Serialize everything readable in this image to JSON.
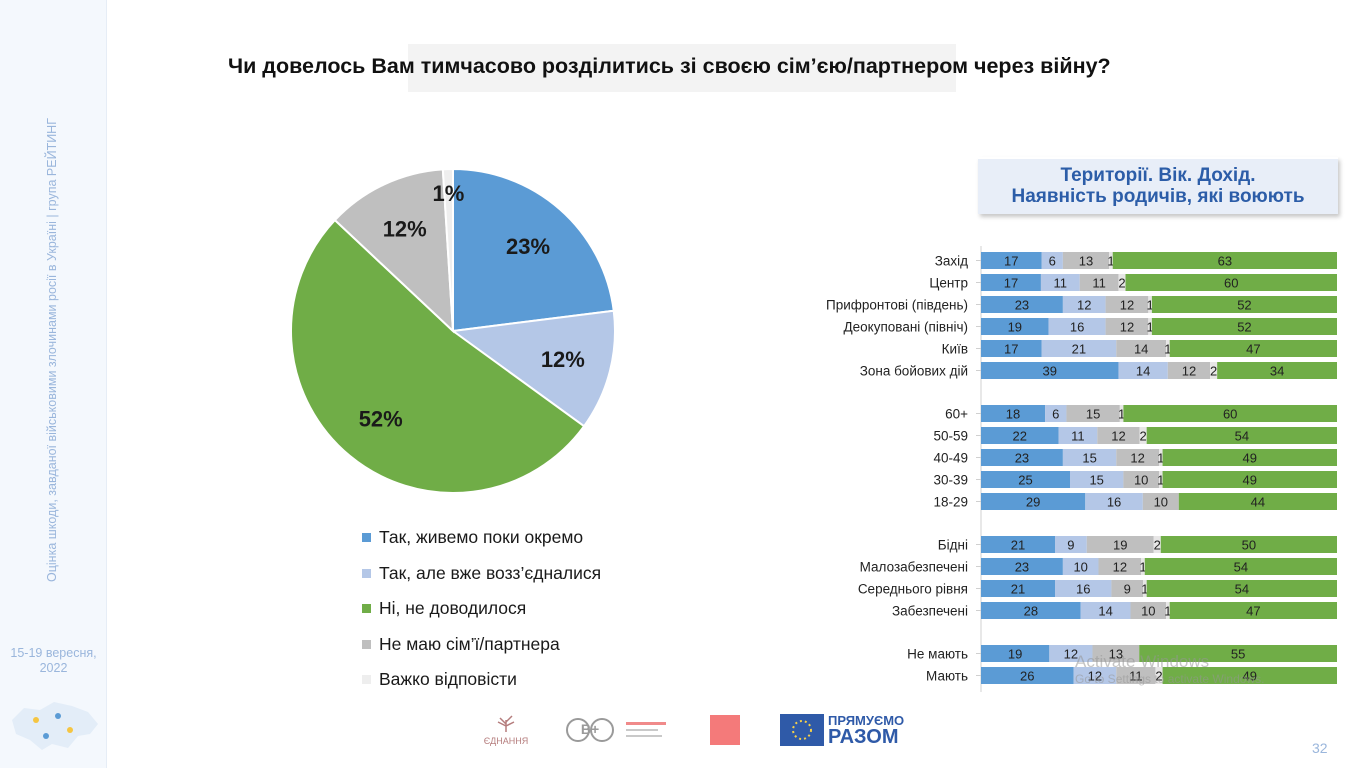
{
  "sidebar": {
    "vertical_text": "Оцінка шкоди, завданої військовими злочинами росії в Україні | група РЕЙТИНГ",
    "date_line1": "15-19 вересня,",
    "date_line2": "2022"
  },
  "title": "Чи довелось Вам тимчасово розділитись зі своєю сім’єю/партнером через війну?",
  "panel": {
    "line1": "Території. Вік. Дохід.",
    "line2": "Наявність родичів, які воюють"
  },
  "colors": {
    "blue": "#5b9bd5",
    "light_blue": "#b4c7e7",
    "green": "#70ad47",
    "gray": "#bfbfbf",
    "very_light": "#eeeeee",
    "panel_title": "#2c5da8"
  },
  "chart_data": [
    {
      "type": "pie",
      "categories": [
        "Так, живемо поки окремо",
        "Так, але вже возз’єдналися",
        "Ні, не доводилося",
        "Не маю сім’ї/партнера",
        "Важко відповісти"
      ],
      "values": [
        23,
        12,
        52,
        12,
        1
      ],
      "labels": [
        "23%",
        "12%",
        "52%",
        "12%",
        "1%"
      ],
      "colors": [
        "#5b9bd5",
        "#b4c7e7",
        "#70ad47",
        "#bfbfbf",
        "#eeeeee"
      ],
      "legend": "bottom"
    },
    {
      "type": "bar",
      "stacked": true,
      "orientation": "horizontal",
      "categories": [
        "Захід",
        "Центр",
        "Прифронтові (південь)",
        "Деокуповані (північ)",
        "Київ",
        "Зона бойових дій",
        "60+",
        "50-59",
        "40-49",
        "30-39",
        "18-29",
        "Бідні",
        "Малозабезпечені",
        "Середнього рівня",
        "Забезпечені",
        "Не мають",
        "Мають"
      ],
      "groups": [
        6,
        5,
        4,
        2
      ],
      "series": [
        {
          "values": [
            17,
            17,
            23,
            19,
            17,
            39,
            18,
            22,
            23,
            25,
            29,
            21,
            23,
            21,
            28,
            19,
            26
          ]
        },
        {
          "values": [
            6,
            11,
            12,
            16,
            21,
            14,
            6,
            11,
            15,
            15,
            16,
            9,
            10,
            16,
            14,
            12,
            12
          ]
        },
        {
          "values": [
            13,
            11,
            12,
            12,
            14,
            12,
            15,
            12,
            12,
            10,
            10,
            19,
            12,
            9,
            10,
            13,
            11
          ]
        },
        {
          "values": [
            1,
            2,
            1,
            1,
            1,
            2,
            1,
            2,
            1,
            1,
            0,
            2,
            1,
            1,
            1,
            0,
            2
          ]
        },
        {
          "values": [
            63,
            60,
            52,
            52,
            47,
            34,
            60,
            54,
            49,
            49,
            44,
            50,
            54,
            54,
            47,
            55,
            49
          ]
        }
      ],
      "colors": [
        "#5b9bd5",
        "#b4c7e7",
        "#bfbfbf",
        "#e7e6e6",
        "#70ad47"
      ],
      "xlim": [
        0,
        100
      ]
    }
  ],
  "watermark": {
    "line1": "Activate Windows",
    "line2": "Go to Settings to activate Windows."
  },
  "logos": {
    "ednannia": "ЄДНАННЯ",
    "vplus": "В+",
    "eu_line1": "ПРЯМУЄМО",
    "eu_line2": "РАЗОМ"
  },
  "page_number": "32"
}
